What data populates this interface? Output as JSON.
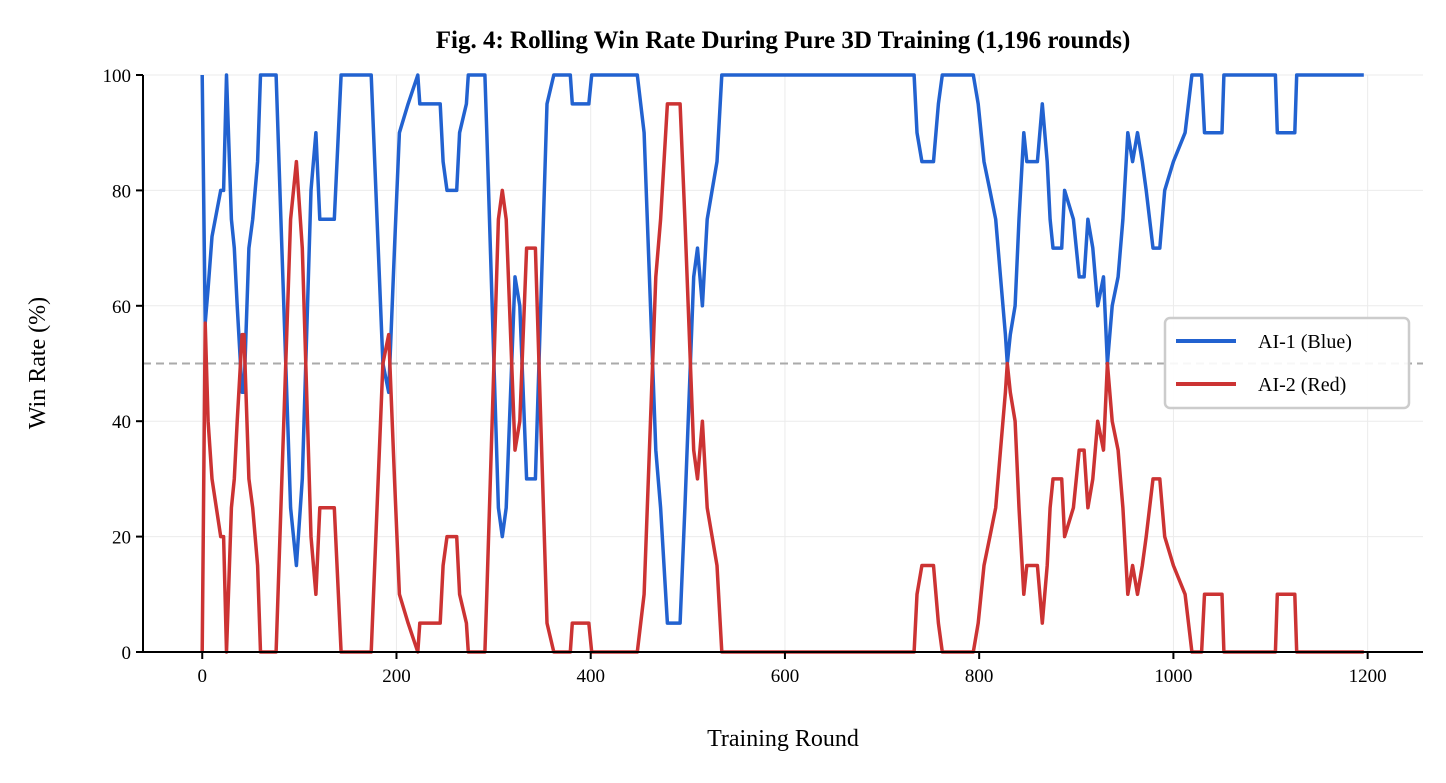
{
  "chart_data": {
    "type": "line",
    "title": "Fig. 4: Rolling Win Rate During Pure 3D Training (1,196 rounds)",
    "xlabel": "Training Round",
    "ylabel": "Win Rate (%)",
    "xlim": [
      -61,
      1257
    ],
    "ylim": [
      0,
      100
    ],
    "xticks": [
      0,
      200,
      400,
      600,
      800,
      1000,
      1200
    ],
    "yticks": [
      0,
      20,
      40,
      60,
      80,
      100
    ],
    "grid": true,
    "legend_position": "center-right",
    "reference_line": {
      "y": 50,
      "style": "dashed",
      "color": "#aaaaaa"
    },
    "x": [
      0,
      3,
      6,
      10,
      19,
      22,
      25,
      30,
      33,
      36,
      41,
      43,
      48,
      52,
      57,
      60,
      76,
      81,
      91,
      97,
      103,
      112,
      117,
      121,
      136,
      143,
      174,
      186,
      192,
      198,
      203,
      212,
      222,
      224,
      245,
      248,
      252,
      262,
      265,
      272,
      274,
      291,
      293,
      305,
      309,
      313,
      322,
      327,
      334,
      343,
      355,
      362,
      379,
      381,
      398,
      401,
      448,
      455,
      467,
      472,
      479,
      492,
      497,
      506,
      510,
      515,
      520,
      525,
      530,
      535,
      733,
      736,
      741,
      753,
      758,
      762,
      794,
      799,
      805,
      811,
      817,
      822,
      827,
      829,
      832,
      837,
      841,
      846,
      849,
      860,
      865,
      870,
      873,
      876,
      885,
      888,
      897,
      903,
      908,
      912,
      917,
      922,
      928,
      932,
      937,
      943,
      948,
      953,
      958,
      963,
      968,
      972,
      979,
      986,
      991,
      1000,
      1012,
      1019,
      1029,
      1032,
      1050,
      1052,
      1105,
      1107,
      1125,
      1127,
      1196
    ],
    "series": [
      {
        "name": "AI-1 (Blue)",
        "color": "#2262d0",
        "values": [
          100,
          57,
          63,
          72,
          80,
          80,
          100,
          75,
          70,
          60,
          45,
          45,
          70,
          75,
          85,
          100,
          100,
          75,
          25,
          15,
          30,
          80,
          90,
          75,
          75,
          100,
          100,
          50,
          45,
          70,
          90,
          95,
          100,
          95,
          95,
          85,
          80,
          80,
          90,
          95,
          100,
          100,
          90,
          25,
          20,
          25,
          65,
          60,
          30,
          30,
          95,
          100,
          100,
          95,
          95,
          100,
          100,
          90,
          35,
          25,
          5,
          5,
          25,
          65,
          70,
          60,
          75,
          80,
          85,
          100,
          100,
          90,
          85,
          85,
          95,
          100,
          100,
          95,
          85,
          80,
          75,
          65,
          55,
          50,
          55,
          60,
          75,
          90,
          85,
          85,
          95,
          85,
          75,
          70,
          70,
          80,
          75,
          65,
          65,
          75,
          70,
          60,
          65,
          50,
          60,
          65,
          75,
          90,
          85,
          90,
          85,
          80,
          70,
          70,
          80,
          85,
          90,
          100,
          100,
          90,
          90,
          100,
          100,
          90,
          90,
          100,
          100
        ]
      },
      {
        "name": "AI-2 (Red)",
        "color": "#cc3333",
        "values": [
          0,
          57,
          40,
          30,
          20,
          20,
          0,
          25,
          30,
          40,
          55,
          55,
          30,
          25,
          15,
          0,
          0,
          25,
          75,
          85,
          70,
          20,
          10,
          25,
          25,
          0,
          0,
          50,
          55,
          30,
          10,
          5,
          0,
          5,
          5,
          15,
          20,
          20,
          10,
          5,
          0,
          0,
          10,
          75,
          80,
          75,
          35,
          40,
          70,
          70,
          5,
          0,
          0,
          5,
          5,
          0,
          0,
          10,
          65,
          75,
          95,
          95,
          75,
          35,
          30,
          40,
          25,
          20,
          15,
          0,
          0,
          10,
          15,
          15,
          5,
          0,
          0,
          5,
          15,
          20,
          25,
          35,
          45,
          50,
          45,
          40,
          25,
          10,
          15,
          15,
          5,
          15,
          25,
          30,
          30,
          20,
          25,
          35,
          35,
          25,
          30,
          40,
          35,
          50,
          40,
          35,
          25,
          10,
          15,
          10,
          15,
          20,
          30,
          30,
          20,
          15,
          10,
          0,
          0,
          10,
          10,
          0,
          0,
          10,
          10,
          0,
          0
        ]
      }
    ]
  }
}
